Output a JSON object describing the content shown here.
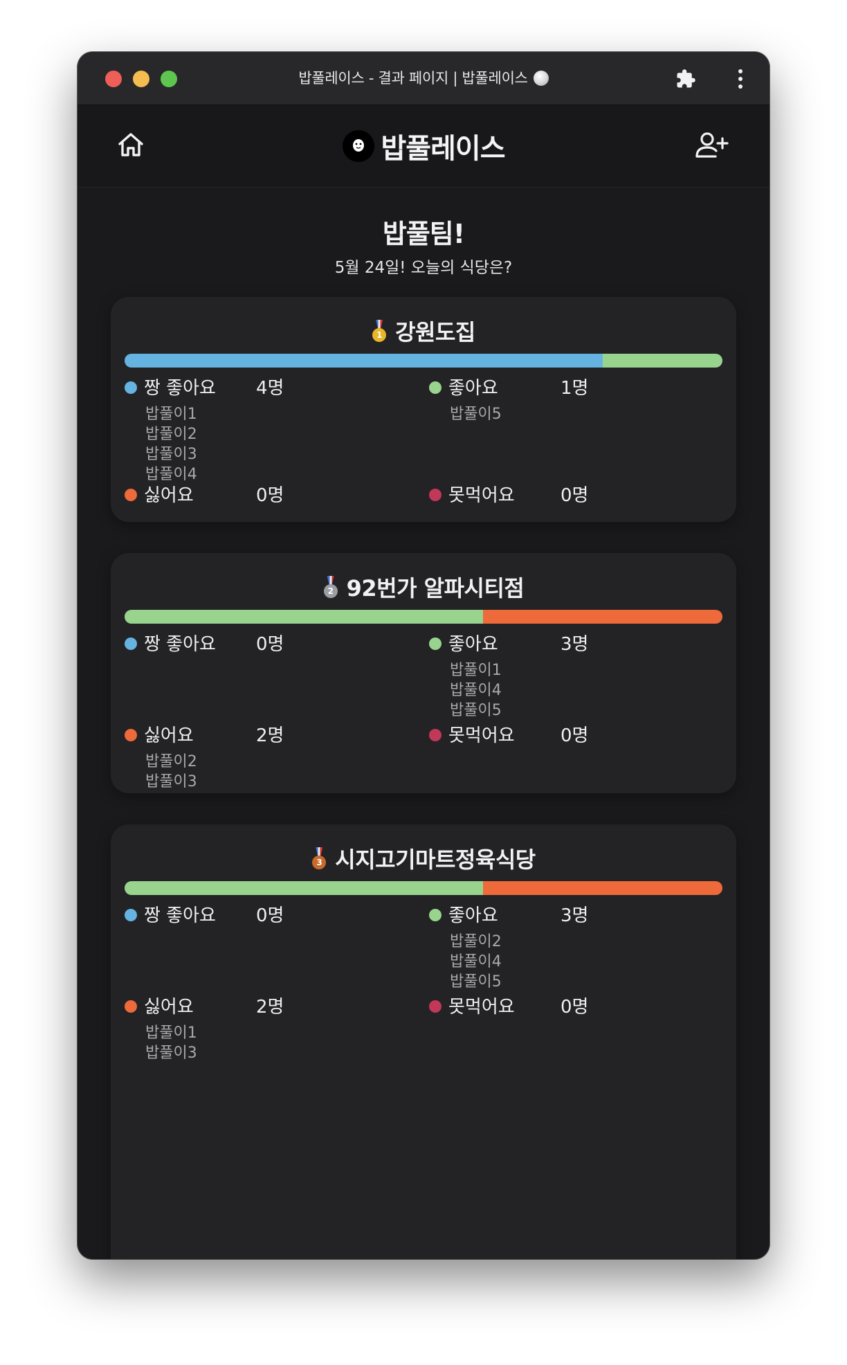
{
  "window": {
    "title": "밥풀레이스 - 결과 페이지 | 밥풀레이스"
  },
  "appbar": {
    "logo_text": "밥풀레이스"
  },
  "page": {
    "team_title": "밥풀팀!",
    "subtitle": "5월 24일! 오늘의 식당은?"
  },
  "colors": {
    "great": "#64b3e0",
    "good": "#98d48e",
    "dislike": "#ee6a3a",
    "cannot_eat": "#c23858"
  },
  "restaurants": [
    {
      "rank": "1",
      "medal": "gold-medal-icon",
      "name": "강원도집",
      "categories": {
        "great": {
          "label": "짱 좋아요",
          "count": "4명",
          "value": 4,
          "voters": [
            "밥풀이1",
            "밥풀이2",
            "밥풀이3",
            "밥풀이4"
          ]
        },
        "good": {
          "label": "좋아요",
          "count": "1명",
          "value": 1,
          "voters": [
            "밥풀이5"
          ]
        },
        "dislike": {
          "label": "싫어요",
          "count": "0명",
          "value": 0,
          "voters": []
        },
        "cannot_eat": {
          "label": "못먹어요",
          "count": "0명",
          "value": 0,
          "voters": []
        }
      }
    },
    {
      "rank": "2",
      "medal": "silver-medal-icon",
      "name": "92번가 알파시티점",
      "categories": {
        "great": {
          "label": "짱 좋아요",
          "count": "0명",
          "value": 0,
          "voters": []
        },
        "good": {
          "label": "좋아요",
          "count": "3명",
          "value": 3,
          "voters": [
            "밥풀이1",
            "밥풀이4",
            "밥풀이5"
          ]
        },
        "dislike": {
          "label": "싫어요",
          "count": "2명",
          "value": 2,
          "voters": [
            "밥풀이2",
            "밥풀이3"
          ]
        },
        "cannot_eat": {
          "label": "못먹어요",
          "count": "0명",
          "value": 0,
          "voters": []
        }
      }
    },
    {
      "rank": "3",
      "medal": "bronze-medal-icon",
      "name": "시지고기마트정육식당",
      "categories": {
        "great": {
          "label": "짱 좋아요",
          "count": "0명",
          "value": 0,
          "voters": []
        },
        "good": {
          "label": "좋아요",
          "count": "3명",
          "value": 3,
          "voters": [
            "밥풀이2",
            "밥풀이4",
            "밥풀이5"
          ]
        },
        "dislike": {
          "label": "싫어요",
          "count": "2명",
          "value": 2,
          "voters": [
            "밥풀이1",
            "밥풀이3"
          ]
        },
        "cannot_eat": {
          "label": "못먹어요",
          "count": "0명",
          "value": 0,
          "voters": []
        }
      }
    }
  ]
}
